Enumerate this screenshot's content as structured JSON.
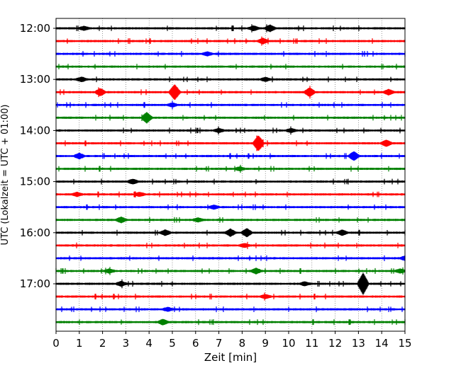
{
  "chart_data": {
    "type": "line",
    "title": "",
    "xlabel": "Zeit  [min]",
    "ylabel": "UTC (Lokalzeit = UTC + 01:00)",
    "xlim": [
      0,
      15
    ],
    "x_ticks": [
      "0",
      "1",
      "2",
      "3",
      "4",
      "5",
      "6",
      "7",
      "8",
      "9",
      "10",
      "11",
      "12",
      "13",
      "14",
      "15"
    ],
    "y_ticks": [
      "12:00",
      "13:00",
      "14:00",
      "15:00",
      "16:00",
      "17:00"
    ],
    "grid": "vertical dotted at each minute",
    "trace_colors": [
      "#000000",
      "#ff0000",
      "#0000ff",
      "#008000"
    ],
    "traces": [
      {
        "start": "12:00",
        "events": [
          [
            9.2,
            0.35
          ],
          [
            8.5,
            0.25
          ],
          [
            1.2,
            0.2
          ]
        ]
      },
      {
        "start": "12:15",
        "events": [
          [
            8.9,
            0.3
          ]
        ]
      },
      {
        "start": "12:30",
        "events": [
          [
            6.5,
            0.2
          ]
        ]
      },
      {
        "start": "12:45",
        "events": []
      },
      {
        "start": "13:00",
        "events": [
          [
            1.1,
            0.25
          ],
          [
            9.0,
            0.2
          ]
        ]
      },
      {
        "start": "13:15",
        "events": [
          [
            5.1,
            0.9
          ],
          [
            1.9,
            0.4
          ],
          [
            10.9,
            0.5
          ],
          [
            14.3,
            0.3
          ]
        ]
      },
      {
        "start": "13:30",
        "events": [
          [
            5.0,
            0.2
          ]
        ]
      },
      {
        "start": "13:45",
        "events": [
          [
            3.9,
            0.6
          ]
        ]
      },
      {
        "start": "14:00",
        "events": [
          [
            7.0,
            0.2
          ],
          [
            10.1,
            0.2
          ]
        ]
      },
      {
        "start": "14:15",
        "events": [
          [
            8.7,
            0.9
          ],
          [
            14.2,
            0.35
          ]
        ]
      },
      {
        "start": "14:30",
        "events": [
          [
            1.0,
            0.3
          ],
          [
            12.8,
            0.5
          ]
        ]
      },
      {
        "start": "14:45",
        "events": [
          [
            7.9,
            0.2
          ]
        ]
      },
      {
        "start": "15:00",
        "events": [
          [
            3.3,
            0.25
          ]
        ]
      },
      {
        "start": "15:15",
        "events": [
          [
            0.9,
            0.2
          ],
          [
            3.6,
            0.2
          ]
        ]
      },
      {
        "start": "15:30",
        "events": [
          [
            6.8,
            0.2
          ]
        ]
      },
      {
        "start": "15:45",
        "events": [
          [
            2.8,
            0.3
          ],
          [
            6.1,
            0.2
          ]
        ]
      },
      {
        "start": "16:00",
        "events": [
          [
            4.7,
            0.3
          ],
          [
            7.5,
            0.4
          ],
          [
            8.2,
            0.45
          ],
          [
            12.3,
            0.3
          ]
        ]
      },
      {
        "start": "16:15",
        "events": [
          [
            8.1,
            0.2
          ]
        ]
      },
      {
        "start": "16:30",
        "events": [
          [
            15.0,
            0.2
          ]
        ]
      },
      {
        "start": "16:45",
        "events": [
          [
            8.6,
            0.3
          ],
          [
            2.3,
            0.2
          ],
          [
            14.8,
            0.2
          ]
        ]
      },
      {
        "start": "17:00",
        "events": [
          [
            13.2,
            1.3
          ],
          [
            2.8,
            0.25
          ],
          [
            10.7,
            0.2
          ]
        ]
      },
      {
        "start": "17:15",
        "events": [
          [
            9.0,
            0.2
          ]
        ]
      },
      {
        "start": "17:30",
        "events": [
          [
            4.8,
            0.2
          ]
        ]
      },
      {
        "start": "17:45",
        "events": [
          [
            4.6,
            0.3
          ]
        ]
      }
    ]
  }
}
